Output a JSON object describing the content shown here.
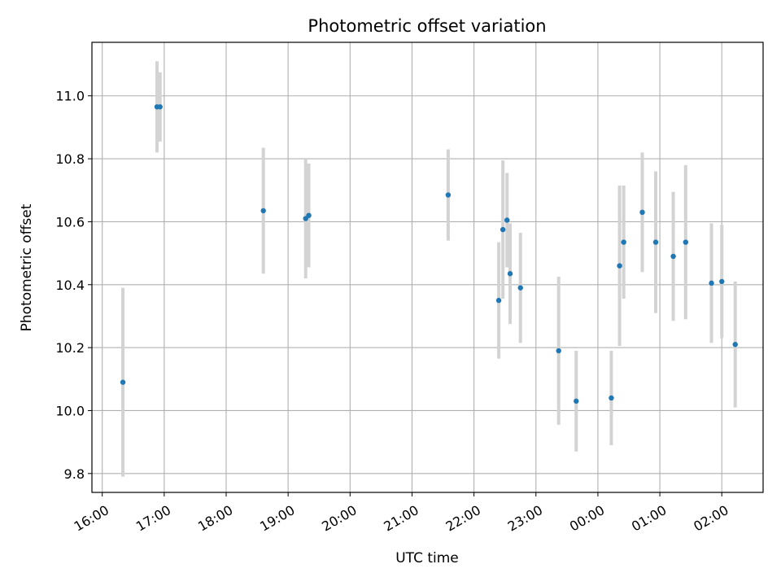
{
  "chart_data": {
    "type": "scatter",
    "title": "Photometric offset variation",
    "xlabel": "UTC time",
    "ylabel": "Photometric offset",
    "x_ticks": [
      "16:00",
      "17:00",
      "18:00",
      "19:00",
      "20:00",
      "21:00",
      "22:00",
      "23:00",
      "00:00",
      "01:00",
      "02:00"
    ],
    "y_ticks": [
      9.8,
      10.0,
      10.2,
      10.4,
      10.6,
      10.8,
      11.0
    ],
    "ylim": [
      9.74,
      11.17
    ],
    "xlim": [
      "15:50",
      "02:40"
    ],
    "grid": true,
    "point_color": "#1f77b4",
    "errorbar_color": "#d3d3d3",
    "points": [
      {
        "time": "16:20",
        "y": 10.09,
        "err": 0.3
      },
      {
        "time": "16:53",
        "y": 10.965,
        "err": 0.145
      },
      {
        "time": "16:56",
        "y": 10.965,
        "err": 0.11
      },
      {
        "time": "18:36",
        "y": 10.635,
        "err": 0.2
      },
      {
        "time": "19:17",
        "y": 10.61,
        "err": 0.19
      },
      {
        "time": "19:20",
        "y": 10.62,
        "err": 0.165
      },
      {
        "time": "21:35",
        "y": 10.685,
        "err": 0.145
      },
      {
        "time": "22:24",
        "y": 10.35,
        "err": 0.185
      },
      {
        "time": "22:28",
        "y": 10.575,
        "err": 0.22
      },
      {
        "time": "22:32",
        "y": 10.605,
        "err": 0.15
      },
      {
        "time": "22:35",
        "y": 10.435,
        "err": 0.16
      },
      {
        "time": "22:45",
        "y": 10.39,
        "err": 0.175
      },
      {
        "time": "23:22",
        "y": 10.19,
        "err": 0.235
      },
      {
        "time": "23:39",
        "y": 10.03,
        "err": 0.16
      },
      {
        "time": "00:13",
        "y": 10.04,
        "err": 0.15
      },
      {
        "time": "00:21",
        "y": 10.46,
        "err": 0.255
      },
      {
        "time": "00:25",
        "y": 10.535,
        "err": 0.18
      },
      {
        "time": "00:43",
        "y": 10.63,
        "err": 0.19
      },
      {
        "time": "00:56",
        "y": 10.535,
        "err": 0.225
      },
      {
        "time": "01:13",
        "y": 10.49,
        "err": 0.205
      },
      {
        "time": "01:25",
        "y": 10.535,
        "err": 0.245
      },
      {
        "time": "01:50",
        "y": 10.405,
        "err": 0.19
      },
      {
        "time": "02:00",
        "y": 10.41,
        "err": 0.18
      },
      {
        "time": "02:13",
        "y": 10.21,
        "err": 0.2
      }
    ]
  }
}
